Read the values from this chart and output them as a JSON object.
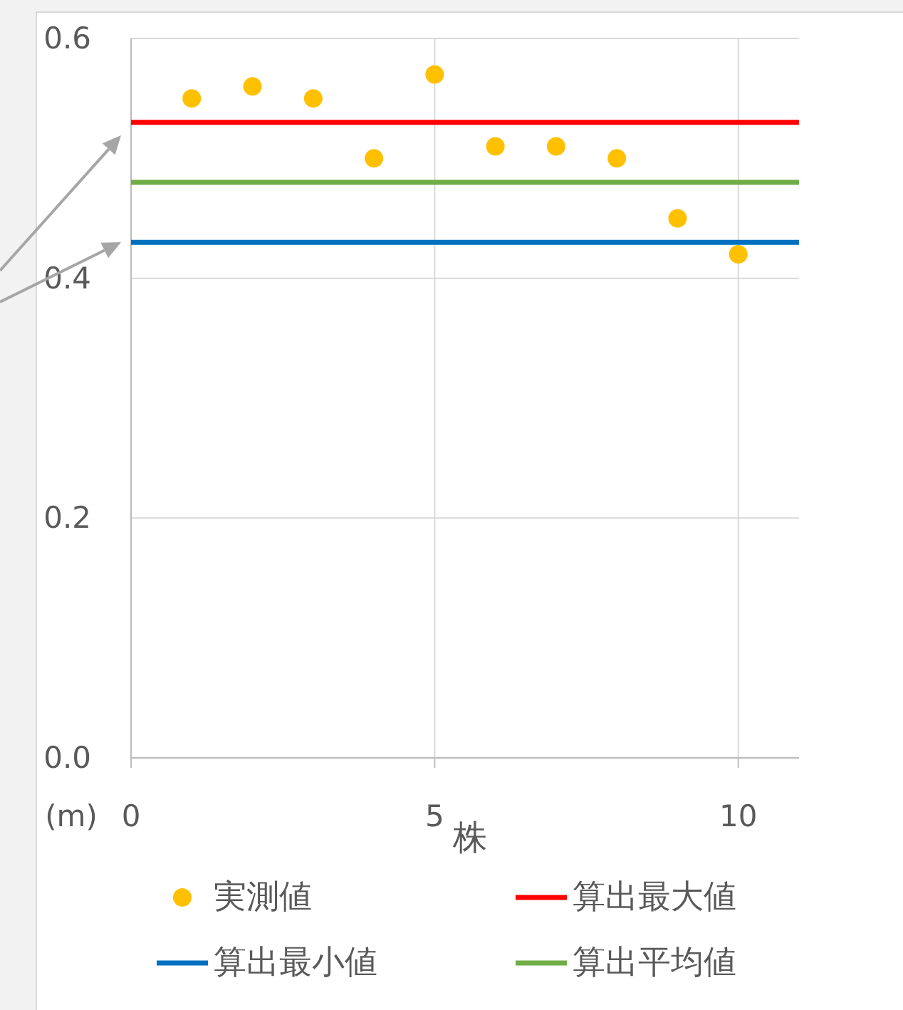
{
  "chart_data": {
    "type": "scatter",
    "xlabel": "株",
    "ylabel": "(m)",
    "xlim": [
      0,
      11
    ],
    "xticks": [
      0,
      5,
      10
    ],
    "ylim": [
      0,
      0.6
    ],
    "yticks": [
      {
        "value": 0,
        "label": "0.0"
      },
      {
        "value": 0.2,
        "label": "0.2"
      },
      {
        "value": 0.4,
        "label": "0.4"
      },
      {
        "value": 0.6,
        "label": "0.6"
      }
    ],
    "grid": true,
    "legend": "bottom",
    "series": [
      {
        "name": "実測値",
        "type": "scatter",
        "marker": "circle",
        "color": "#ffc000",
        "x": [
          1,
          2,
          3,
          4,
          5,
          6,
          7,
          8,
          9,
          10
        ],
        "values": [
          0.55,
          0.56,
          0.55,
          0.5,
          0.57,
          0.51,
          0.51,
          0.5,
          0.45,
          0.42
        ]
      },
      {
        "name": "算出最大値",
        "type": "line",
        "color": "#ff0000",
        "x": [
          0,
          11
        ],
        "values": [
          0.53,
          0.53
        ]
      },
      {
        "name": "算出最小値",
        "type": "line",
        "color": "#0070c0",
        "x": [
          0,
          11
        ],
        "values": [
          0.43,
          0.43
        ]
      },
      {
        "name": "算出平均値",
        "type": "line",
        "color": "#70ad47",
        "x": [
          0,
          11
        ],
        "values": [
          0.48,
          0.48
        ]
      }
    ]
  }
}
